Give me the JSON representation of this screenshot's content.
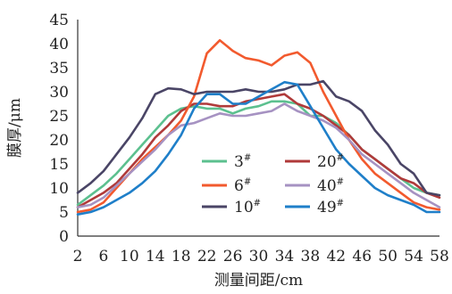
{
  "chart_data": {
    "type": "line",
    "xlabel": "测量间距/cm",
    "ylabel": "膜厚/μm",
    "x": [
      2,
      4,
      6,
      8,
      10,
      12,
      14,
      16,
      18,
      20,
      22,
      24,
      26,
      28,
      30,
      32,
      34,
      36,
      38,
      40,
      42,
      44,
      46,
      48,
      50,
      52,
      54,
      56,
      58
    ],
    "x_ticks": [
      2,
      6,
      10,
      14,
      18,
      22,
      26,
      30,
      34,
      38,
      42,
      46,
      50,
      54,
      58
    ],
    "y_ticks": [
      0,
      5,
      10,
      15,
      20,
      25,
      30,
      35,
      40,
      45
    ],
    "xlim": [
      2,
      58
    ],
    "ylim": [
      0,
      45
    ],
    "grid": false,
    "legend": "center",
    "series": [
      {
        "name": "3#",
        "color": "#5cc08f",
        "values": [
          6.5,
          8.5,
          10.5,
          13,
          16,
          19,
          22,
          25,
          26.5,
          27,
          26.5,
          26.5,
          25.5,
          26.5,
          27,
          28,
          28,
          27.5,
          25,
          25,
          23.5,
          21,
          18,
          16,
          14,
          12,
          10,
          9,
          8.5
        ]
      },
      {
        "name": "20#",
        "color": "#b03a3a",
        "values": [
          6,
          7.5,
          9,
          11,
          14,
          17,
          20.5,
          23,
          26,
          27.5,
          27.5,
          27,
          27,
          28,
          28.5,
          29,
          29.5,
          27.5,
          26.5,
          25,
          23,
          21,
          18,
          16,
          14,
          12,
          11,
          9,
          8
        ]
      },
      {
        "name": "6#",
        "color": "#f25a2e",
        "values": [
          5,
          5.5,
          7,
          10,
          13,
          16,
          18.5,
          21,
          24,
          29,
          38,
          40.7,
          38.5,
          37,
          36.5,
          35.5,
          37.5,
          38.2,
          36,
          30,
          25,
          20,
          16,
          13,
          11,
          9,
          7,
          6,
          5.5
        ]
      },
      {
        "name": "40#",
        "color": "#a692c2",
        "values": [
          6,
          6.5,
          8,
          10.5,
          13,
          15.5,
          18,
          21,
          23,
          23.5,
          24.5,
          25.5,
          25,
          25,
          25.5,
          26,
          27.5,
          26,
          25,
          24,
          22.5,
          20,
          17,
          15,
          13,
          11,
          9,
          7.5,
          6
        ]
      },
      {
        "name": "10#",
        "color": "#4a4566",
        "values": [
          9,
          11,
          13.5,
          17,
          20.5,
          24.5,
          29.5,
          30.7,
          30.5,
          29.5,
          30,
          30,
          30,
          30.5,
          30,
          30,
          30.5,
          31.5,
          31.5,
          32.2,
          29,
          28,
          26,
          22,
          19,
          15,
          13,
          9,
          8.5
        ]
      },
      {
        "name": "49#",
        "color": "#1f7fc9",
        "values": [
          4.5,
          5,
          6,
          7.5,
          9,
          11,
          13.5,
          17,
          21,
          26.5,
          29.5,
          29.5,
          27.5,
          27.5,
          29,
          30.5,
          32,
          31.5,
          27,
          22.5,
          18,
          15,
          12.5,
          10,
          8.5,
          7.5,
          6.5,
          5,
          5
        ]
      }
    ]
  }
}
